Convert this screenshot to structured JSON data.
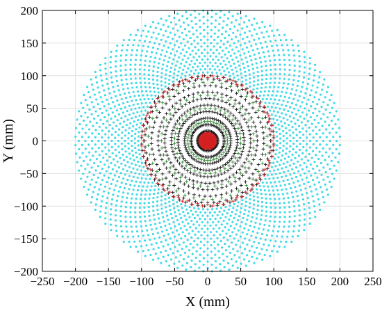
{
  "chart_data": {
    "type": "scatter",
    "title": "",
    "xlabel": "X (mm)",
    "ylabel": "Y (mm)",
    "xlim": [
      -250,
      250
    ],
    "ylim": [
      -200,
      200
    ],
    "xticks": [
      -250,
      -200,
      -150,
      -100,
      -50,
      0,
      50,
      100,
      150,
      200,
      250
    ],
    "yticks": [
      -200,
      -150,
      -100,
      -50,
      0,
      50,
      100,
      150,
      200
    ],
    "xtick_labels": [
      "−250",
      "−200",
      "−150",
      "−100",
      "−50",
      "0",
      "50",
      "100",
      "150",
      "200",
      "250"
    ],
    "ytick_labels": [
      "−200",
      "−150",
      "−100",
      "−50",
      "0",
      "50",
      "100",
      "150",
      "200"
    ],
    "grid": true,
    "series": [
      {
        "color": "#3fdbe8",
        "marker": "dot",
        "radii": [
          105,
          110,
          115,
          120,
          125,
          130,
          135,
          140,
          145,
          150,
          155,
          160,
          165,
          170,
          175,
          180,
          185,
          190,
          195,
          200
        ],
        "points_per_ring": 96
      },
      {
        "color": "#1a1a1a",
        "marker": "plus",
        "radii": [
          15,
          25,
          35,
          45,
          55,
          65,
          75,
          85,
          95,
          100
        ],
        "points_per_ring": 64
      },
      {
        "color": "#2e8b2e",
        "marker": "plus",
        "radii": [
          30,
          50,
          70,
          90
        ],
        "points_per_ring": 40
      },
      {
        "color": "#d42020",
        "marker": "plus",
        "radii": [
          2,
          4,
          6,
          8,
          10,
          12,
          97,
          100
        ],
        "points_per_ring": 40
      }
    ]
  }
}
